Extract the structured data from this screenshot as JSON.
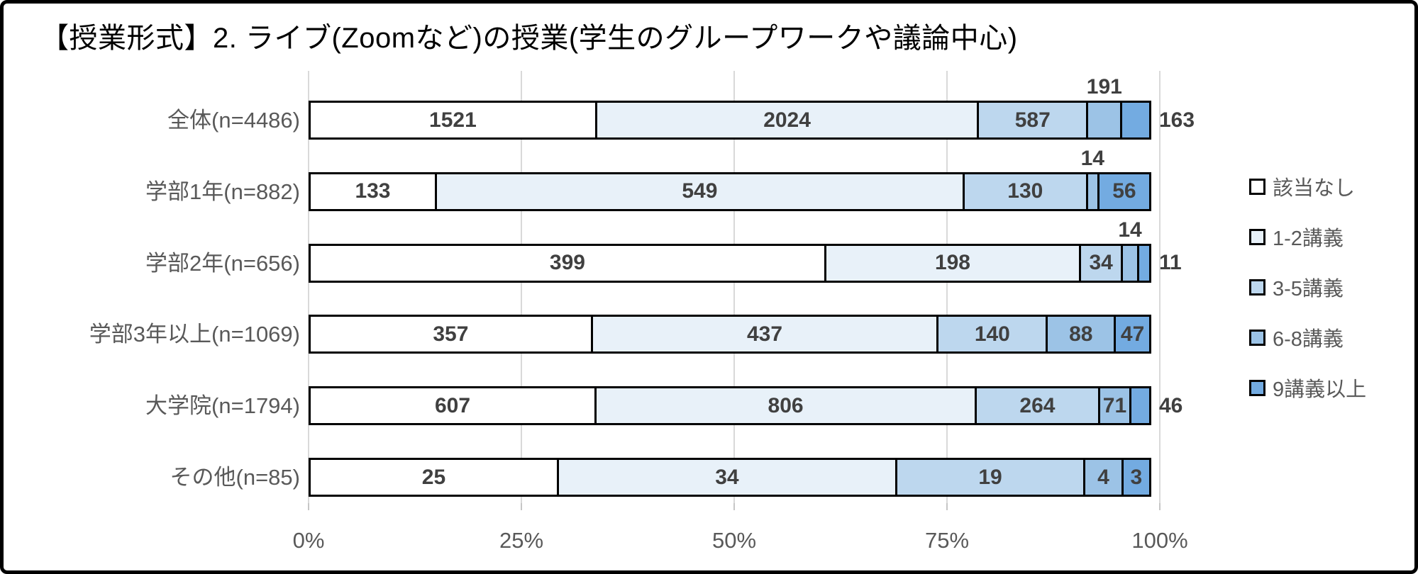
{
  "chart": {
    "title": "【授業形式】2. ライブ(Zoomなど)の授業(学生のグループワークや議論中心)"
  },
  "chart_data": {
    "type": "bar",
    "stacked": true,
    "orientation": "horizontal",
    "x_axis": "percent of row total",
    "xlim": [
      0,
      100
    ],
    "x_ticks": [
      "0%",
      "25%",
      "50%",
      "75%",
      "100%"
    ],
    "grid": true,
    "legend_position": "right",
    "categories": [
      "全体(n=4486)",
      "学部1年(n=882)",
      "学部2年(n=656)",
      "学部3年以上(n=1069)",
      "大学院(n=1794)",
      "その他(n=85)"
    ],
    "series": [
      {
        "name": "該当なし",
        "color": "#ffffff",
        "values": [
          1521,
          133,
          399,
          357,
          607,
          25
        ]
      },
      {
        "name": "1-2講義",
        "color": "#e8f1f9",
        "values": [
          2024,
          549,
          198,
          437,
          806,
          34
        ]
      },
      {
        "name": "3-5講義",
        "color": "#bdd7ee",
        "values": [
          587,
          130,
          34,
          140,
          264,
          19
        ]
      },
      {
        "name": "6-8講義",
        "color": "#9cc3e6",
        "values": [
          191,
          14,
          14,
          88,
          71,
          4
        ]
      },
      {
        "name": "9講義以上",
        "color": "#73abe1",
        "values": [
          163,
          56,
          11,
          47,
          46,
          3
        ]
      }
    ],
    "label_positions": [
      [
        "inside",
        "inside",
        "inside",
        "above",
        "right"
      ],
      [
        "inside",
        "inside",
        "inside",
        "above",
        "inside"
      ],
      [
        "inside",
        "inside",
        "inside",
        "above",
        "right"
      ],
      [
        "inside",
        "inside",
        "inside",
        "inside",
        "inside"
      ],
      [
        "inside",
        "inside",
        "inside",
        "inside",
        "right"
      ],
      [
        "inside",
        "inside",
        "inside",
        "inside",
        "inside"
      ]
    ]
  },
  "colors": {
    "data_label": "#404040",
    "axis_text": "#595959",
    "gridline": "#d9d9d9",
    "frame_border": "#000000",
    "segment_border": "#000000"
  }
}
